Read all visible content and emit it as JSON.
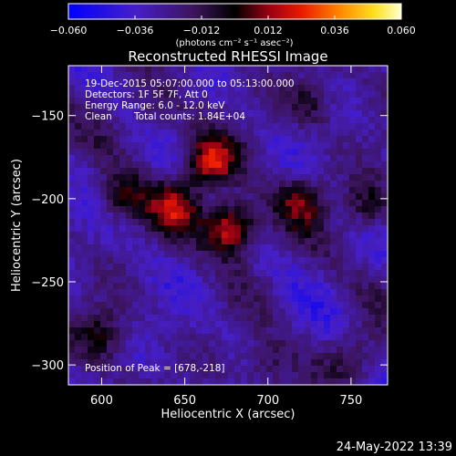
{
  "chart_data": {
    "type": "heatmap",
    "title": "Reconstructed RHESSI Image",
    "xlabel": "Heliocentric X (arcsec)",
    "ylabel": "Heliocentric Y (arcsec)",
    "xlim": [
      580,
      772
    ],
    "ylim": [
      -312,
      -120
    ],
    "x_ticks": [
      600,
      650,
      700,
      750
    ],
    "x_tick_labels": [
      "600",
      "650",
      "700",
      "750"
    ],
    "y_ticks": [
      -150,
      -200,
      -250,
      -300
    ],
    "y_tick_labels": [
      "−150",
      "−200",
      "−250",
      "−300"
    ],
    "colorbar": {
      "min": -0.06,
      "max": 0.06,
      "ticks": [
        -0.06,
        -0.036,
        -0.012,
        0.012,
        0.036,
        0.06
      ],
      "tick_labels": [
        "−0.060",
        "−0.036",
        "−0.012",
        "0.012",
        "0.036",
        "0.060"
      ],
      "unit_label": "(photons cm⁻² s⁻¹ asec⁻²)"
    },
    "sources": [
      {
        "x": 678,
        "y": -218,
        "amplitude": 0.06
      },
      {
        "x": 665,
        "y": -178,
        "amplitude": 0.046
      },
      {
        "x": 645,
        "y": -205,
        "amplitude": 0.034
      },
      {
        "x": 612,
        "y": -200,
        "amplitude": 0.03
      },
      {
        "x": 720,
        "y": -202,
        "amplitude": 0.03
      },
      {
        "x": 760,
        "y": -205,
        "amplitude": 0.026
      },
      {
        "x": 600,
        "y": -282,
        "amplitude": 0.024
      },
      {
        "x": 725,
        "y": -142,
        "amplitude": 0.022
      },
      {
        "x": 700,
        "y": -300,
        "amplitude": 0.02
      },
      {
        "x": 632,
        "y": -150,
        "amplitude": 0.016
      },
      {
        "x": 752,
        "y": -295,
        "amplitude": 0.018
      }
    ],
    "grid": false
  },
  "annotations": {
    "time_range": "19-Dec-2015 05:07:00.000 to 05:13:00.000",
    "detectors": "Detectors: 1F 5F 7F, Att 0",
    "energy": "Energy Range: 6.0 - 12.0 keV",
    "method": "Clean",
    "counts": "Total counts: 1.84E+04",
    "peak": "Position of Peak = [678,-218]"
  },
  "footer": {
    "date": "24-May-2022 13:39"
  },
  "colors": {
    "background": "#000000",
    "negative": "#0000ff",
    "positive": "#ffff80"
  }
}
